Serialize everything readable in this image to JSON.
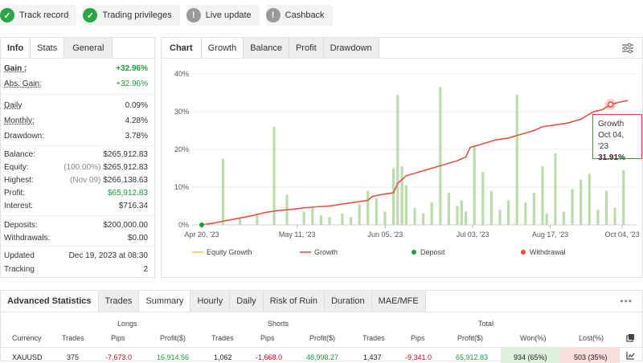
{
  "badges": [
    {
      "label": "Track record",
      "icon": "check-icon",
      "color": "#29a745"
    },
    {
      "label": "Trading privileges",
      "icon": "check-icon",
      "color": "#29a745"
    },
    {
      "label": "Live update",
      "icon": "exclamation-icon",
      "color": "#9a9a9a"
    },
    {
      "label": "Cashback",
      "icon": "exclamation-icon",
      "color": "#9a9a9a"
    }
  ],
  "info": {
    "tabs": [
      "Info",
      "Stats",
      "General"
    ],
    "gain_label": "Gain :",
    "gain_value": "+32.96%",
    "abs_gain_label": "Abs. Gain:",
    "abs_gain_value": "+32.96%",
    "daily_label": "Daily",
    "daily_value": "0.09%",
    "monthly_label": "Monthly:",
    "monthly_value": "4.28%",
    "drawdown_label": "Drawdown:",
    "drawdown_value": "3.78%",
    "balance_label": "Balance:",
    "balance_value": "$265,912.83",
    "equity_label": "Equity:",
    "equity_sub": "(100.00%)",
    "equity_value": "$265,912.83",
    "highest_label": "Highest:",
    "highest_sub": "(Nov 09)",
    "highest_value": "$266,138.63",
    "profit_label": "Profit:",
    "profit_value": "$65,912.83",
    "interest_label": "Interest:",
    "interest_value": "$716.34",
    "deposits_label": "Deposits:",
    "deposits_value": "$200,000.00",
    "withdrawals_label": "Withdrawals:",
    "withdrawals_value": "$0.00",
    "updated_label": "Updated",
    "updated_value": "Dec 19, 2023 at 08:30",
    "tracking_label": "Tracking",
    "tracking_value": "2"
  },
  "chart_panel": {
    "tabs": [
      "Chart",
      "Growth",
      "Balance",
      "Profit",
      "Drawdown"
    ],
    "active_tab": "Growth",
    "legend": [
      "Equity Growth",
      "Growth",
      "Deposit",
      "Withdrawal"
    ],
    "legend_colors": {
      "equity": "#f5c242",
      "growth": "#e8493a",
      "deposit": "#1a9c3a",
      "withdrawal": "#e8493a"
    },
    "tooltip": {
      "title": "Growth",
      "date": "Oct 04, '23",
      "value": "31.91%"
    }
  },
  "chart_data": {
    "type": "line",
    "y_ticks": [
      "0%",
      "10%",
      "20%",
      "30%",
      "40%"
    ],
    "ylim": [
      0,
      40
    ],
    "x_ticks": [
      "Apr 20, '23",
      "May 11, '23",
      "Jun 05, '23",
      "Jul 03, '23",
      "Aug 17, '23",
      "Oct 04, '23"
    ],
    "x_tick_pos": [
      0,
      0.224,
      0.431,
      0.636,
      0.818,
      0.987
    ],
    "growth_series": {
      "name": "Growth",
      "x": [
        0,
        0.03,
        0.06,
        0.09,
        0.12,
        0.15,
        0.18,
        0.21,
        0.24,
        0.27,
        0.3,
        0.33,
        0.36,
        0.39,
        0.4,
        0.42,
        0.45,
        0.46,
        0.48,
        0.51,
        0.54,
        0.57,
        0.6,
        0.62,
        0.63,
        0.66,
        0.69,
        0.72,
        0.75,
        0.78,
        0.8,
        0.83,
        0.86,
        0.89,
        0.92,
        0.94,
        0.96,
        0.98,
        1.0
      ],
      "y": [
        0,
        0.5,
        1.2,
        1.8,
        2.5,
        3.3,
        3.8,
        4.1,
        4.5,
        4.8,
        5.0,
        5.5,
        6.0,
        6.5,
        7.5,
        8.0,
        8.5,
        11.0,
        13.0,
        14.0,
        15.0,
        16.0,
        17.0,
        18.0,
        20.5,
        21.5,
        22.5,
        23.0,
        24.0,
        25.0,
        26.0,
        26.5,
        27.0,
        28.0,
        30.0,
        30.5,
        31.9,
        32.5,
        32.96
      ]
    },
    "equity_bars": {
      "name": "Equity Growth",
      "x": [
        0.05,
        0.09,
        0.13,
        0.17,
        0.2,
        0.24,
        0.26,
        0.28,
        0.3,
        0.33,
        0.35,
        0.37,
        0.39,
        0.41,
        0.43,
        0.45,
        0.46,
        0.47,
        0.48,
        0.5,
        0.52,
        0.54,
        0.56,
        0.58,
        0.6,
        0.61,
        0.62,
        0.64,
        0.66,
        0.68,
        0.7,
        0.72,
        0.74,
        0.76,
        0.78,
        0.8,
        0.81,
        0.83,
        0.85,
        0.87,
        0.89,
        0.91,
        0.93,
        0.95,
        0.97,
        0.99
      ],
      "y": [
        17.5,
        2.0,
        3.0,
        26.0,
        8.0,
        3.5,
        4.5,
        2.5,
        2.0,
        3.0,
        2.0,
        5.5,
        9.0,
        7.0,
        3.5,
        15.0,
        34.5,
        15.5,
        10.5,
        4.5,
        3.0,
        6.0,
        36.5,
        8.5,
        5.0,
        6.5,
        3.5,
        21.0,
        14.0,
        9.0,
        4.0,
        6.5,
        34.5,
        6.0,
        8.5,
        15.5,
        3.0,
        19.0,
        3.5,
        9.5,
        12.0,
        13.5,
        4.0,
        9.0,
        4.5,
        14.5
      ]
    }
  },
  "advanced": {
    "title": "Advanced Statistics",
    "tabs": [
      "Trades",
      "Summary",
      "Hourly",
      "Daily",
      "Risk of Ruin",
      "Duration",
      "MAE/MFE"
    ],
    "active_tab": "Summary",
    "groups": [
      "Longs",
      "Shorts",
      "Total"
    ],
    "columns": [
      "Currency",
      "Trades",
      "Pips",
      "Profit($)",
      "Trades",
      "Pips",
      "Profit($)",
      "Trades",
      "Pips",
      "Profit($)",
      "Won(%)",
      "Lost(%)"
    ],
    "row": [
      "XAUUSD",
      "375",
      "-7,673.0",
      "16,914.56",
      "1,062",
      "-1,668.0",
      "48,998.27",
      "1,437",
      "-9,341.0",
      "65,912.83",
      "934 (65%)",
      "503 (35%)"
    ]
  }
}
